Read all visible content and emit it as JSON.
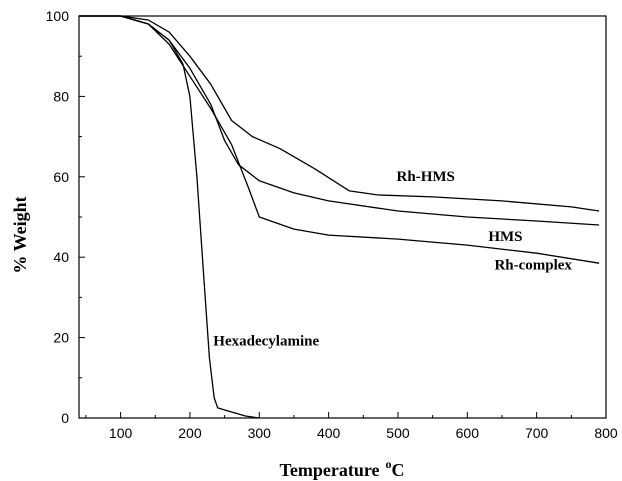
{
  "chart_data": {
    "type": "line",
    "title": "",
    "xlabel": "Temperature",
    "xlabel_unit": "oC",
    "ylabel": "% Weight",
    "xlim": [
      40,
      800
    ],
    "ylim": [
      0,
      100
    ],
    "x_ticks": [
      100,
      200,
      300,
      400,
      500,
      600,
      700,
      800
    ],
    "y_ticks": [
      0,
      20,
      40,
      60,
      80,
      100
    ],
    "grid": false,
    "legend": "none",
    "line_color": "#000000",
    "series": [
      {
        "name": "Rh-HMS",
        "label_at": [
          540,
          59
        ],
        "points": [
          [
            40,
            100
          ],
          [
            100,
            100
          ],
          [
            140,
            99
          ],
          [
            170,
            96
          ],
          [
            200,
            90
          ],
          [
            230,
            83
          ],
          [
            260,
            74
          ],
          [
            290,
            70
          ],
          [
            330,
            67
          ],
          [
            380,
            62
          ],
          [
            430,
            56.5
          ],
          [
            470,
            55.5
          ],
          [
            550,
            55
          ],
          [
            650,
            54
          ],
          [
            750,
            52.5
          ],
          [
            790,
            51.5
          ]
        ]
      },
      {
        "name": "HMS",
        "label_at": [
          655,
          44
        ],
        "points": [
          [
            40,
            100
          ],
          [
            100,
            100
          ],
          [
            140,
            98
          ],
          [
            170,
            94
          ],
          [
            200,
            87
          ],
          [
            230,
            78
          ],
          [
            250,
            69
          ],
          [
            270,
            63
          ],
          [
            300,
            59
          ],
          [
            350,
            56
          ],
          [
            400,
            54
          ],
          [
            500,
            51.5
          ],
          [
            600,
            50
          ],
          [
            700,
            49
          ],
          [
            790,
            48
          ]
        ]
      },
      {
        "name": "Rh-complex",
        "label_at": [
          695,
          37
        ],
        "points": [
          [
            40,
            100
          ],
          [
            100,
            100
          ],
          [
            140,
            98
          ],
          [
            170,
            93
          ],
          [
            200,
            85
          ],
          [
            230,
            77
          ],
          [
            260,
            68
          ],
          [
            285,
            57
          ],
          [
            300,
            50
          ],
          [
            350,
            47
          ],
          [
            400,
            45.5
          ],
          [
            500,
            44.5
          ],
          [
            600,
            43
          ],
          [
            700,
            41
          ],
          [
            790,
            38.5
          ]
        ]
      },
      {
        "name": "Hexadecylamine",
        "label_at": [
          310,
          18
        ],
        "points": [
          [
            40,
            100
          ],
          [
            100,
            100
          ],
          [
            140,
            98
          ],
          [
            170,
            94
          ],
          [
            190,
            88
          ],
          [
            200,
            80
          ],
          [
            210,
            60
          ],
          [
            220,
            35
          ],
          [
            228,
            15
          ],
          [
            235,
            5
          ],
          [
            240,
            2.5
          ],
          [
            260,
            1.5
          ],
          [
            280,
            0.5
          ],
          [
            300,
            0
          ]
        ]
      }
    ]
  }
}
